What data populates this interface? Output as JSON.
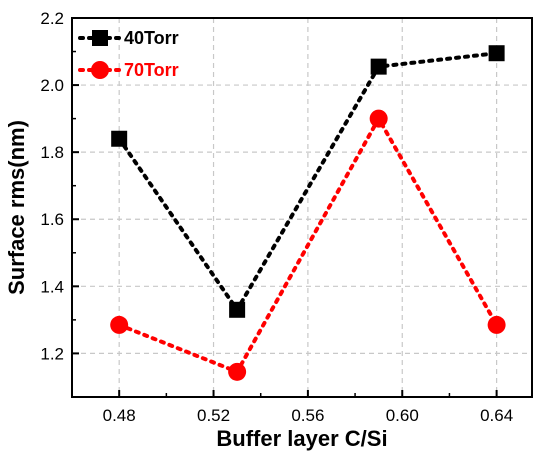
{
  "chart_data": {
    "type": "line",
    "xlabel": "Buffer layer C/Si",
    "ylabel": "Surface rms(nm)",
    "xlim": [
      0.46,
      0.655
    ],
    "ylim": [
      1.07,
      2.2
    ],
    "x_ticks": [
      0.48,
      0.52,
      0.56,
      0.6,
      0.64
    ],
    "x_tick_labels": [
      "0.48",
      "0.52",
      "0.56",
      "0.60",
      "0.64"
    ],
    "y_ticks": [
      1.2,
      1.4,
      1.6,
      1.8,
      2.0,
      2.2
    ],
    "y_tick_labels": [
      "1.2",
      "1.4",
      "1.6",
      "1.8",
      "2.0",
      "2.2"
    ],
    "grid": true,
    "legend_position": "top-left",
    "series": [
      {
        "name": "40Torr",
        "color": "#000000",
        "marker": "square",
        "line_style": "dotted",
        "x": [
          0.48,
          0.53,
          0.59,
          0.64
        ],
        "y": [
          1.84,
          1.33,
          2.055,
          2.095
        ]
      },
      {
        "name": "70Torr",
        "color": "#ff0000",
        "marker": "circle",
        "line_style": "dotted",
        "x": [
          0.48,
          0.53,
          0.59,
          0.64
        ],
        "y": [
          1.285,
          1.145,
          1.9,
          1.285
        ]
      }
    ]
  }
}
